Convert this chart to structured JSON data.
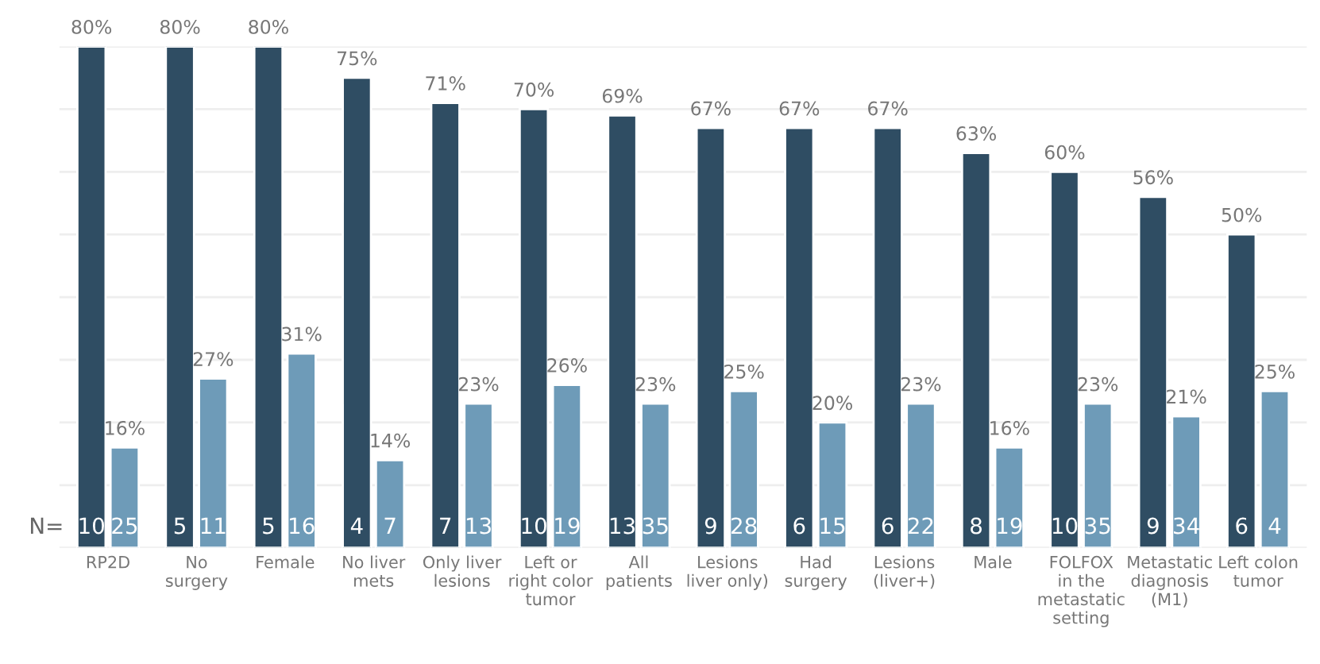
{
  "chart_data": {
    "type": "bar",
    "categories": [
      "RP2D",
      "No\nsurgery",
      "Female",
      "No liver\nmets",
      "Only liver\nlesions",
      "Left or\nright color\ntumor",
      "All\npatients",
      "Lesions\nliver only)",
      "Had\nsurgery",
      "Lesions\n(liver+)",
      "Male",
      "FOLFOX\nin the\nmetastatic\nsetting",
      "Metastatic\ndiagnosis\n(M1)",
      "Left colon\ntumor"
    ],
    "series": [
      {
        "color": "#2f4d63",
        "values": [
          80,
          80,
          80,
          75,
          71,
          70,
          69,
          67,
          67,
          67,
          63,
          60,
          56,
          50
        ],
        "value_labels": [
          "80%",
          "80%",
          "80%",
          "75%",
          "71%",
          "70%",
          "69%",
          "67%",
          "67%",
          "67%",
          "63%",
          "60%",
          "56%",
          "50%"
        ]
      },
      {
        "color": "#6e9bb8",
        "values": [
          16,
          27,
          31,
          14,
          23,
          26,
          23,
          25,
          20,
          23,
          16,
          23,
          21,
          25
        ],
        "value_labels": [
          "16%",
          "27%",
          "31%",
          "14%",
          "23%",
          "26%",
          "23%",
          "25%",
          "20%",
          "23%",
          "16%",
          "23%",
          "21%",
          "25%"
        ]
      }
    ],
    "annotations": [
      "N=",
      "10",
      "25",
      "5",
      "11",
      "5",
      "16",
      "4",
      "7",
      "7",
      "13",
      "10",
      "19",
      "13",
      "35",
      "9",
      "28",
      "6",
      "15",
      "6",
      "22",
      "8",
      "19",
      "10",
      "35",
      "9",
      "34",
      "6",
      "4"
    ],
    "ylim": [
      0,
      80
    ],
    "yticks": [
      {
        "value": 0,
        "label": null
      },
      {
        "value": 10,
        "label": null
      },
      {
        "value": 20,
        "label": null
      },
      {
        "value": 30,
        "label": null
      },
      {
        "value": 40,
        "label": null
      },
      {
        "value": 50,
        "label": null
      },
      {
        "value": 60,
        "label": null
      },
      {
        "value": 70,
        "label": null
      },
      {
        "value": 80,
        "label": null
      }
    ],
    "grid": "y",
    "tick_labels": "x"
  }
}
